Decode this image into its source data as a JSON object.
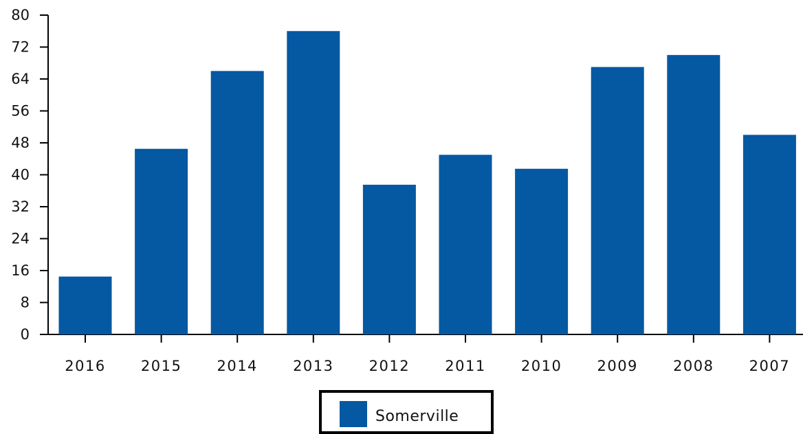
{
  "chart_data": {
    "type": "bar",
    "categories": [
      "2016",
      "2015",
      "2014",
      "2013",
      "2012",
      "2011",
      "2010",
      "2009",
      "2008",
      "2007"
    ],
    "series": [
      {
        "name": "Somerville",
        "values": [
          14.5,
          46.5,
          66,
          76,
          37.5,
          45,
          41.5,
          67,
          70,
          50
        ],
        "color": "#0558a2"
      }
    ],
    "y_ticks": [
      "0",
      "8",
      "16",
      "24",
      "32",
      "40",
      "48",
      "56",
      "64",
      "72",
      "80"
    ],
    "ylim": [
      0,
      80
    ],
    "grid": false,
    "legend": "bottom-center"
  }
}
